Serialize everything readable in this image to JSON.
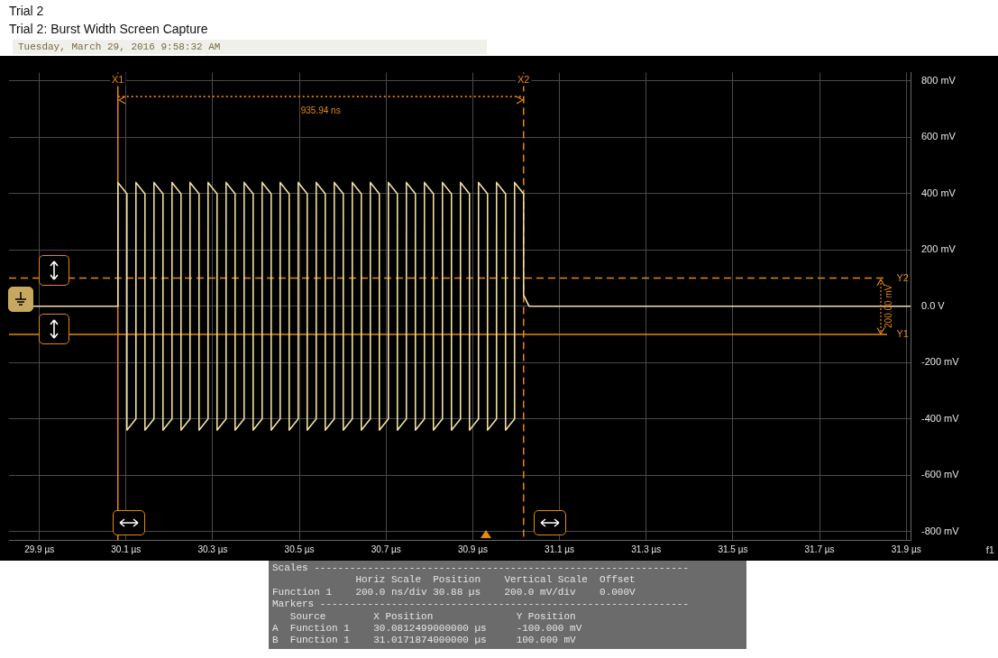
{
  "chart_data": {
    "type": "line",
    "title": "Trial 2",
    "subtitle": "Trial 2: Burst Width Screen Capture",
    "xlim": [
      29.83,
      31.91
    ],
    "xticks": [
      {
        "value": 29.9,
        "label": "29.9 µs"
      },
      {
        "value": 30.1,
        "label": "30.1 µs"
      },
      {
        "value": 30.3,
        "label": "30.3 µs"
      },
      {
        "value": 30.5,
        "label": "30.5 µs"
      },
      {
        "value": 30.7,
        "label": "30.7 µs"
      },
      {
        "value": 30.9,
        "label": "30.9 µs"
      },
      {
        "value": 31.1,
        "label": "31.1 µs"
      },
      {
        "value": 31.3,
        "label": "31.3 µs"
      },
      {
        "value": 31.5,
        "label": "31.5 µs"
      },
      {
        "value": 31.7,
        "label": "31.7 µs"
      },
      {
        "value": 31.9,
        "label": "31.9 µs"
      }
    ],
    "ylim": [
      -830,
      830
    ],
    "yticks": [
      {
        "value": -800,
        "label": "-800 mV"
      },
      {
        "value": -600,
        "label": "-600 mV"
      },
      {
        "value": -400,
        "label": "-400 mV"
      },
      {
        "value": -200,
        "label": "-200 mV"
      },
      {
        "value": 0,
        "label": "0.0 V"
      },
      {
        "value": 200,
        "label": "200 mV"
      },
      {
        "value": 400,
        "label": "400 mV"
      },
      {
        "value": 600,
        "label": "600 mV"
      },
      {
        "value": 800,
        "label": "800 mV"
      }
    ],
    "grid": true,
    "series": [
      {
        "color": "#f2e0a0",
        "x": [
          29.83,
          30.0812,
          30.0812,
          30.102,
          30.102,
          30.1228,
          30.1228,
          30.1436,
          30.1436,
          30.1644,
          30.1644,
          30.1852,
          30.1852,
          30.206,
          30.206,
          30.2268,
          30.2268,
          30.2476,
          30.2476,
          30.2684,
          30.2684,
          30.2892,
          30.2892,
          30.31,
          30.31,
          30.3308,
          30.3308,
          30.3516,
          30.3516,
          30.3724,
          30.3724,
          30.3932,
          30.3932,
          30.414,
          30.414,
          30.4348,
          30.4348,
          30.4556,
          30.4556,
          30.4764,
          30.4764,
          30.4972,
          30.4972,
          30.518,
          30.518,
          30.5388,
          30.5388,
          30.5596,
          30.5596,
          30.5804,
          30.5804,
          30.6012,
          30.6012,
          30.622,
          30.622,
          30.6428,
          30.6428,
          30.6636,
          30.6636,
          30.6844,
          30.6844,
          30.7052,
          30.7052,
          30.726,
          30.726,
          30.7468,
          30.7468,
          30.7676,
          30.7676,
          30.7884,
          30.7884,
          30.8092,
          30.8092,
          30.83,
          30.83,
          30.8508,
          30.8508,
          30.8716,
          30.8716,
          30.8924,
          30.8924,
          30.9132,
          30.9132,
          30.934,
          30.934,
          30.9548,
          30.9548,
          30.9756,
          30.9756,
          30.9964,
          30.9964,
          31.0172,
          31.0172,
          31.03,
          31.91
        ],
        "values": [
          0,
          0,
          440,
          400,
          -440,
          -400,
          440,
          400,
          -440,
          -400,
          440,
          400,
          -440,
          -400,
          440,
          400,
          -440,
          -400,
          440,
          400,
          -440,
          -400,
          440,
          400,
          -440,
          -400,
          440,
          400,
          -440,
          -400,
          440,
          400,
          -440,
          -400,
          440,
          400,
          -440,
          -400,
          440,
          400,
          -440,
          -400,
          440,
          400,
          -440,
          -400,
          440,
          400,
          -440,
          -400,
          440,
          400,
          -440,
          -400,
          440,
          400,
          -440,
          -400,
          440,
          400,
          -440,
          -400,
          440,
          400,
          -440,
          -400,
          440,
          400,
          -440,
          -400,
          440,
          400,
          -440,
          -400,
          440,
          400,
          -440,
          -400,
          440,
          400,
          -440,
          -400,
          440,
          400,
          -440,
          -400,
          440,
          400,
          -440,
          -400,
          440,
          400,
          40,
          0,
          0
        ]
      },
      {
        "type": "line",
        "color": "#e8870e",
        "line_style": "dotted",
        "x": [
          30.0812,
          31.0172
        ],
        "values": [
          745,
          745
        ]
      }
    ],
    "ref_lines": [
      {
        "axis": "x",
        "value": 30.0812,
        "label": "X1",
        "color": "#e8870e",
        "line_style": "solid"
      },
      {
        "axis": "x",
        "value": 31.0172,
        "label": "X2",
        "color": "#e8870e",
        "line_style": "dashed"
      },
      {
        "axis": "y",
        "value": 100,
        "label": "Y2",
        "color": "#e8870e",
        "line_style": "dashed"
      },
      {
        "axis": "y",
        "value": -100,
        "label": "Y1",
        "color": "#e8870e",
        "line_style": "solid"
      }
    ],
    "annotations": [
      "Tuesday, March 29, 2016 9:58:32 AM",
      {
        "text": "935.94 ns",
        "x": 30.549,
        "y": 745
      },
      {
        "text": "200.00 mV",
        "x": 31.86,
        "y": 0
      },
      "f1",
      "Scales ---------------------------------------------------------------",
      "              Horiz Scale  Position    Vertical Scale  Offset",
      "Function 1    200.0 ns/div 30.88 µs    200.0 mV/div    0.000V",
      "Markers --------------------------------------------------------------",
      "   Source        X Position              Y Position",
      "A  Function 1    30.0812499000000 µs     -100.000 mV",
      "B  Function 1    31.0171874000000 µs     100.000 mV"
    ]
  }
}
